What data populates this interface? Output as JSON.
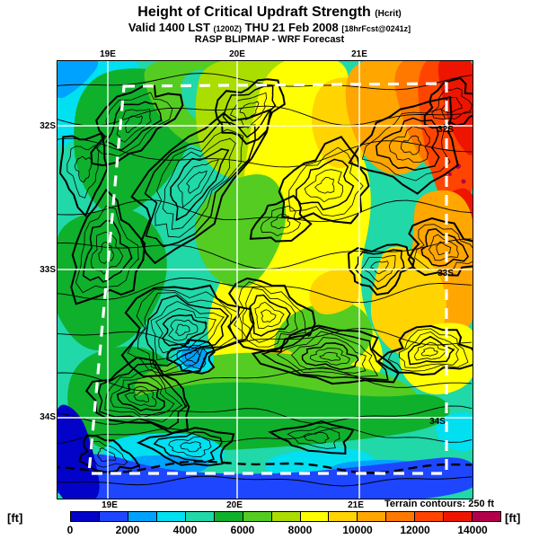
{
  "header": {
    "title": "Height of Critical Updraft Strength",
    "title_paren": "(Hcrit)",
    "valid": {
      "prefix": "Valid 1400 LST",
      "issue": "(1200Z)",
      "date": "THU 21 Feb 2008",
      "fcst": "[18hrFcst@0241z]"
    },
    "model_line": "RASP BLIPMAP - WRF Forecast"
  },
  "map": {
    "grid": {
      "lon_labels": [
        "19E",
        "20E",
        "21E"
      ],
      "lat_labels": [
        "32S",
        "33S",
        "34S"
      ]
    },
    "terrain_note": "Terrain contours: 250 ft"
  },
  "colorbar": {
    "unit": "[ft]",
    "ticks": [
      "0",
      "2000",
      "4000",
      "6000",
      "8000",
      "10000",
      "12000",
      "14000"
    ],
    "min_ft": 0,
    "max_ft": 15000,
    "step_ft": 1000,
    "colors": [
      "#0202c8",
      "#1e46ff",
      "#00a2ff",
      "#00e0f0",
      "#20d8a8",
      "#0fb02c",
      "#55cc22",
      "#aade00",
      "#ffff00",
      "#ffd400",
      "#ffa600",
      "#ff7800",
      "#ff4400",
      "#ee1500",
      "#b4004b"
    ]
  }
}
